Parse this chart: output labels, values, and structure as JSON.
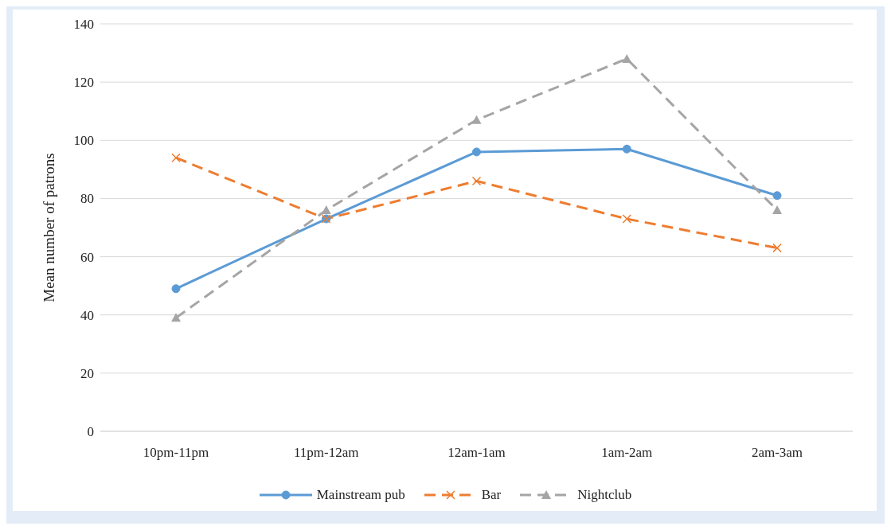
{
  "chart_data": {
    "type": "line",
    "ylabel": "Mean number of patrons",
    "categories": [
      "10pm-11pm",
      "11pm-12am",
      "12am-1am",
      "1am-2am",
      "2am-3am"
    ],
    "series": [
      {
        "name": "Mainstream pub",
        "color": "#5b9bd5",
        "values": [
          49,
          73,
          96,
          97,
          81
        ],
        "marker": "circle",
        "line_style": "solid"
      },
      {
        "name": "Bar",
        "color": "#ed7d31",
        "values": [
          94,
          73,
          86,
          73,
          63
        ],
        "marker": "cross",
        "line_style": "dashed"
      },
      {
        "name": "Nightclub",
        "color": "#a5a5a5",
        "values": [
          39,
          76,
          107,
          128,
          76
        ],
        "marker": "triangle",
        "line_style": "dashed"
      }
    ],
    "ylim": [
      0,
      140
    ],
    "yticks": [
      0,
      20,
      40,
      60,
      80,
      100,
      120,
      140
    ],
    "grid": "y",
    "legend": "bottom"
  }
}
